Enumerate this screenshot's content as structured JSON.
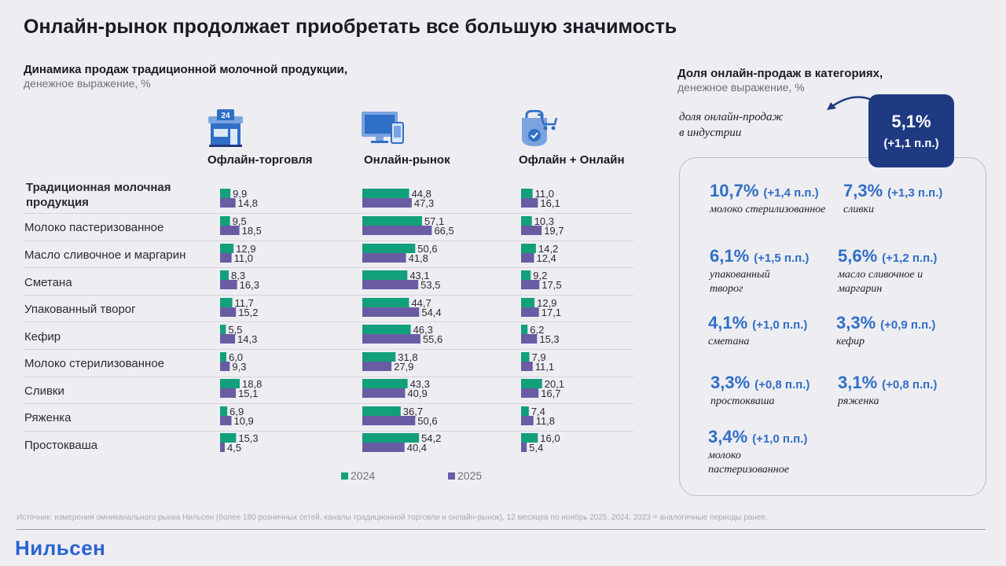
{
  "title": "Онлайн-рынок продолжает приобретать все большую значимость",
  "left_section": {
    "title": "Динамика продаж традиционной молочной продукции,",
    "unit": "денежное выражение, %"
  },
  "columns": [
    {
      "label": "Офлайн-торговля",
      "icon": "store-24-icon"
    },
    {
      "label": "Онлайн-рынок",
      "icon": "computer-phone-icon"
    },
    {
      "label": "Офлайн + Онлайн",
      "icon": "shopping-bag-cart-icon"
    }
  ],
  "colors": {
    "y2024": "#12a07c",
    "y2025": "#6a5ca3",
    "accent": "#2f6fc6",
    "badge": "#1f3a82"
  },
  "chart_data": {
    "type": "bar",
    "orientation": "horizontal",
    "title": "Динамика продаж традиционной молочной продукции, денежное выражение, %",
    "categories": [
      "Традиционная молочная продукция",
      "Молоко пастеризованное",
      "Масло сливочное и маргарин",
      "Сметана",
      "Упакованный творог",
      "Кефир",
      "Молоко стерилизованное",
      "Сливки",
      "Ряженка",
      "Простокваша"
    ],
    "panels": [
      {
        "name": "Офлайн-торговля",
        "xlim": [
          0,
          70
        ],
        "series": [
          {
            "name": "2024",
            "values": [
              9.9,
              9.5,
              12.9,
              8.3,
              11.7,
              5.5,
              6.0,
              18.8,
              6.9,
              15.3
            ],
            "labels": [
              "9,9",
              "9,5",
              "12,9",
              "8,3",
              "11,7",
              "5,5",
              "6,0",
              "18,8",
              "6,9",
              "15,3"
            ]
          },
          {
            "name": "2025",
            "values": [
              14.8,
              18.5,
              11.0,
              16.3,
              15.2,
              14.3,
              9.3,
              15.1,
              10.9,
              4.5
            ],
            "labels": [
              "14,8",
              "18,5",
              "11,0",
              "16,3",
              "15,2",
              "14,3",
              "9,3",
              "15,1",
              "10,9",
              "4,5"
            ]
          }
        ]
      },
      {
        "name": "Онлайн-рынок",
        "xlim": [
          0,
          70
        ],
        "series": [
          {
            "name": "2024",
            "values": [
              44.8,
              57.1,
              50.6,
              43.1,
              44.7,
              46.3,
              31.8,
              43.3,
              36.7,
              54.2
            ],
            "labels": [
              "44,8",
              "57,1",
              "50,6",
              "43,1",
              "44,7",
              "46,3",
              "31,8",
              "43,3",
              "36,7",
              "54,2"
            ]
          },
          {
            "name": "2025",
            "values": [
              47.3,
              66.5,
              41.8,
              53.5,
              54.4,
              55.6,
              27.9,
              40.9,
              50.6,
              40.4
            ],
            "labels": [
              "47,3",
              "66,5",
              "41,8",
              "53,5",
              "54,4",
              "55,6",
              "27,9",
              "40,9",
              "50,6",
              "40,4"
            ]
          }
        ]
      },
      {
        "name": "Офлайн + Онлайн",
        "xlim": [
          0,
          70
        ],
        "series": [
          {
            "name": "2024",
            "values": [
              11.0,
              10.3,
              14.2,
              9.2,
              12.9,
              6.2,
              7.9,
              20.1,
              7.4,
              16.0
            ],
            "labels": [
              "11,0",
              "10,3",
              "14,2",
              "9,2",
              "12,9",
              "6,2",
              "7,9",
              "20,1",
              "7,4",
              "16,0"
            ]
          },
          {
            "name": "2025",
            "values": [
              16.1,
              19.7,
              12.4,
              17.5,
              17.1,
              15.3,
              11.1,
              16.7,
              11.8,
              5.4
            ],
            "labels": [
              "16,1",
              "19,7",
              "12,4",
              "17,5",
              "17,1",
              "15,3",
              "11,1",
              "16,7",
              "11,8",
              "5,4"
            ]
          }
        ]
      }
    ],
    "legend": [
      "2024",
      "2025"
    ]
  },
  "right_section": {
    "title": "Доля онлайн-продаж в категориях,",
    "unit": "денежное выражение, %",
    "industry_note_line1": "доля онлайн-продаж",
    "industry_note_line2": "в индустрии",
    "industry_value": "5,1%",
    "industry_change": "(+1,1 п.п.)",
    "shares": [
      {
        "value": "10,7%",
        "change": "(+1,4 п.п.)",
        "category": "молоко стерилизованное"
      },
      {
        "value": "7,3%",
        "change": "(+1,3 п.п.)",
        "category": "сливки"
      },
      {
        "value": "6,1%",
        "change": "(+1,5 п.п.)",
        "category": "упакованный творог"
      },
      {
        "value": "5,6%",
        "change": "(+1,2 п.п.)",
        "category": "масло сливочное и маргарин"
      },
      {
        "value": "4,1%",
        "change": "(+1,0 п.п.)",
        "category": "сметана"
      },
      {
        "value": "3,3%",
        "change": "(+0,9 п.п.)",
        "category": "кефир"
      },
      {
        "value": "3,3%",
        "change": "(+0,8 п.п.)",
        "category": "простокваша"
      },
      {
        "value": "3,1%",
        "change": "(+0,8 п.п.)",
        "category": "ряженка"
      },
      {
        "value": "3,4%",
        "change": "(+1,0 п.п.)",
        "category": "молоко пастеризованное"
      }
    ]
  },
  "source": "Источник: измерения омниканального рынка Нильсен (более 180 розничных сетей, каналы традиционной торговли и онлайн-рынок), 12 месяцев по ноябрь 2025, 2024, 2023 = аналогичные периоды ранее.",
  "logo": "Нильсен"
}
